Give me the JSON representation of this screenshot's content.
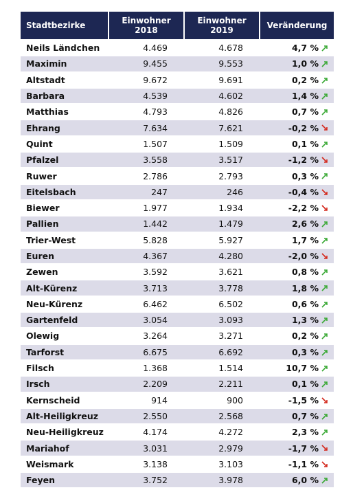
{
  "table": {
    "header": [
      "Stadtbezirke",
      "Einwohner\n2018",
      "Einwohner\n2019",
      "Veränderung"
    ],
    "rows": [
      [
        "Neils Ländchen",
        "4.469",
        "4.678",
        "4,7 %"
      ],
      [
        "Maximin",
        "9.455",
        "9.553",
        "1,0 %"
      ],
      [
        "Altstadt",
        "9.672",
        "9.691",
        "0,2 %"
      ],
      [
        "Barbara",
        "4.539",
        "4.602",
        "1,4 %"
      ],
      [
        "Matthias",
        "4.793",
        "4.826",
        "0,7 %"
      ],
      [
        "Ehrang",
        "7.634",
        "7.621",
        "-0,2 %"
      ],
      [
        "Quint",
        "1.507",
        "1.509",
        "0,1 %"
      ],
      [
        "Pfalzel",
        "3.558",
        "3.517",
        "-1,2 %"
      ],
      [
        "Ruwer",
        "2.786",
        "2.793",
        "0,3 %"
      ],
      [
        "Eitelsbach",
        "247",
        "246",
        "-0,4 %"
      ],
      [
        "Biewer",
        "1.977",
        "1.934",
        "-2,2 %"
      ],
      [
        "Pallien",
        "1.442",
        "1.479",
        "2,6 %"
      ],
      [
        "Trier-West",
        "5.828",
        "5.927",
        "1,7 %"
      ],
      [
        "Euren",
        "4.367",
        "4.280",
        "-2,0 %"
      ],
      [
        "Zewen",
        "3.592",
        "3.621",
        "0,8 %"
      ],
      [
        "Alt-Kürenz",
        "3.713",
        "3.778",
        "1,8 %"
      ],
      [
        "Neu-Kürenz",
        "6.462",
        "6.502",
        "0,6 %"
      ],
      [
        "Gartenfeld",
        "3.054",
        "3.093",
        "1,3 %"
      ],
      [
        "Olewig",
        "3.264",
        "3.271",
        "0,2 %"
      ],
      [
        "Tarforst",
        "6.675",
        "6.692",
        "0,3 %"
      ],
      [
        "Filsch",
        "1.368",
        "1.514",
        "10,7 %"
      ],
      [
        "Irsch",
        "2.209",
        "2.211",
        "0,1 %"
      ],
      [
        "Kernscheid",
        "914",
        "900",
        "-1,5 %"
      ],
      [
        "Alt-Heiligkreuz",
        "2.550",
        "2.568",
        "0,7 %"
      ],
      [
        "Neu-Heiligkreuz",
        "4.174",
        "4.272",
        "2,3 %"
      ],
      [
        "Mariahof",
        "3.031",
        "2.979",
        "-1,7 %"
      ],
      [
        "Weismark",
        "3.138",
        "3.103",
        "-1,1 %"
      ],
      [
        "Feyen",
        "3.752",
        "3.978",
        "6,0 %"
      ]
    ]
  }
}
